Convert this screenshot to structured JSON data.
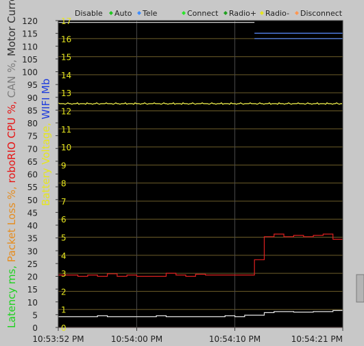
{
  "legend": [
    {
      "label": "Disable",
      "color": "#c8c8c8"
    },
    {
      "label": "Auto",
      "color": "#1ec81e"
    },
    {
      "label": "Tele",
      "color": "#3c8cff"
    },
    {
      "label": "Connect",
      "color": "#28e628"
    },
    {
      "label": "Radio+",
      "color": "#1ea01e"
    },
    {
      "label": "Radio-",
      "color": "#e6e61e"
    },
    {
      "label": "Disconnect",
      "color": "#ff9650"
    }
  ],
  "left_axis_title": [
    {
      "text": "Latency ms, ",
      "color": "#1ed21e"
    },
    {
      "text": "Packet Loss %, ",
      "color": "#e68c1e"
    },
    {
      "text": "roboRIO CPU %, ",
      "color": "#e61414"
    },
    {
      "text": "CAN %, ",
      "color": "#7d7d7d"
    },
    {
      "text": "Motor Currents",
      "color": "#323232"
    }
  ],
  "right_axis_title": [
    {
      "text": "Battery Voltage, ",
      "color": "#e6e61e"
    },
    {
      "text": "WIFI Mb",
      "color": "#1e3cdc"
    }
  ],
  "chart_data": {
    "type": "line",
    "left_axis": {
      "ylim": [
        0,
        120
      ],
      "ticks": [
        "0",
        "5",
        "10",
        "15",
        "20",
        "25",
        "30",
        "35",
        "40",
        "45",
        "50",
        "55",
        "60",
        "65",
        "70",
        "75",
        "80",
        "85",
        "90",
        "95",
        "100",
        "105",
        "110",
        "115",
        "120"
      ]
    },
    "right_axis": {
      "ylim": [
        0,
        17
      ],
      "ticks": [
        "0",
        "1",
        "2",
        "3",
        "4",
        "5",
        "6",
        "7",
        "8",
        "9",
        "10",
        "11",
        "12",
        "13",
        "14",
        "15",
        "16",
        "17"
      ]
    },
    "x_axis": {
      "range": [
        "10:53:52 PM",
        "10:54:21 PM"
      ],
      "ticks": [
        "10:53:52 PM",
        "10:54:00 PM",
        "10:54:10 PM",
        "10:54:21 PM"
      ]
    },
    "series": [
      {
        "axis": "left",
        "color": "#e02020",
        "points": [
          [
            "10:53:52 PM",
            20.5
          ],
          [
            "10:53:54 PM",
            20.5
          ],
          [
            "10:53:54 PM",
            20.0
          ],
          [
            "10:53:55 PM",
            20.0
          ],
          [
            "10:53:55 PM",
            20.5
          ],
          [
            "10:53:56 PM",
            20.5
          ],
          [
            "10:53:56 PM",
            20.0
          ],
          [
            "10:53:57 PM",
            20.0
          ],
          [
            "10:53:57 PM",
            21.0
          ],
          [
            "10:53:58 PM",
            21.0
          ],
          [
            "10:53:58 PM",
            20.0
          ],
          [
            "10:53:59 PM",
            20.0
          ],
          [
            "10:53:59 PM",
            20.5
          ],
          [
            "10:54:00 PM",
            20.5
          ],
          [
            "10:54:00 PM",
            20.0
          ],
          [
            "10:54:03 PM",
            20.0
          ],
          [
            "10:54:03 PM",
            21.2
          ],
          [
            "10:54:04 PM",
            21.2
          ],
          [
            "10:54:04 PM",
            20.5
          ],
          [
            "10:54:05 PM",
            20.5
          ],
          [
            "10:54:05 PM",
            20.0
          ],
          [
            "10:54:06 PM",
            20.0
          ],
          [
            "10:54:06 PM",
            20.8
          ],
          [
            "10:54:07 PM",
            20.8
          ],
          [
            "10:54:07 PM",
            20.5
          ],
          [
            "10:54:12 PM",
            20.5
          ],
          [
            "10:54:12 PM",
            26.5
          ],
          [
            "10:54:13 PM",
            26.5
          ],
          [
            "10:54:13 PM",
            35.5
          ],
          [
            "10:54:14 PM",
            35.5
          ],
          [
            "10:54:14 PM",
            36.5
          ],
          [
            "10:54:15 PM",
            36.5
          ],
          [
            "10:54:15 PM",
            35.5
          ],
          [
            "10:54:16 PM",
            35.5
          ],
          [
            "10:54:16 PM",
            36.0
          ],
          [
            "10:54:17 PM",
            36.0
          ],
          [
            "10:54:17 PM",
            35.5
          ],
          [
            "10:54:18 PM",
            35.5
          ],
          [
            "10:54:18 PM",
            36.0
          ],
          [
            "10:54:19 PM",
            36.0
          ],
          [
            "10:54:19 PM",
            36.5
          ],
          [
            "10:54:20 PM",
            36.5
          ],
          [
            "10:54:20 PM",
            34.5
          ],
          [
            "10:54:21 PM",
            34.5
          ]
        ]
      },
      {
        "axis": "left",
        "color": "#e6e6e6",
        "points": [
          [
            "10:53:52 PM",
            4.2
          ],
          [
            "10:53:56 PM",
            4.2
          ],
          [
            "10:53:56 PM",
            4.6
          ],
          [
            "10:53:57 PM",
            4.6
          ],
          [
            "10:53:57 PM",
            4.2
          ],
          [
            "10:54:02 PM",
            4.2
          ],
          [
            "10:54:02 PM",
            4.6
          ],
          [
            "10:54:03 PM",
            4.6
          ],
          [
            "10:54:03 PM",
            4.2
          ],
          [
            "10:54:09 PM",
            4.2
          ],
          [
            "10:54:09 PM",
            4.6
          ],
          [
            "10:54:10 PM",
            4.6
          ],
          [
            "10:54:10 PM",
            4.2
          ],
          [
            "10:54:11 PM",
            4.2
          ],
          [
            "10:54:11 PM",
            4.8
          ],
          [
            "10:54:13 PM",
            4.8
          ],
          [
            "10:54:13 PM",
            5.8
          ],
          [
            "10:54:14 PM",
            5.8
          ],
          [
            "10:54:14 PM",
            6.2
          ],
          [
            "10:54:16 PM",
            6.2
          ],
          [
            "10:54:16 PM",
            6.0
          ],
          [
            "10:54:18 PM",
            6.0
          ],
          [
            "10:54:18 PM",
            6.2
          ],
          [
            "10:54:20 PM",
            6.2
          ],
          [
            "10:54:20 PM",
            6.6
          ],
          [
            "10:54:21 PM",
            6.6
          ]
        ]
      },
      {
        "axis": "left",
        "color": "#ffaaaa",
        "points": [
          [
            "10:53:52 PM",
            0.0
          ],
          [
            "10:54:21 PM",
            0.0
          ]
        ]
      },
      {
        "axis": "right",
        "color": "#ffff50",
        "noisy": true,
        "points": [
          [
            "10:53:52 PM",
            12.4
          ],
          [
            "10:54:21 PM",
            12.4
          ]
        ]
      },
      {
        "axis": "right",
        "color": "#d2d2d2",
        "points": [
          [
            "10:53:52 PM",
            16.9
          ],
          [
            "10:54:12 PM",
            16.9
          ]
        ]
      },
      {
        "axis": "right",
        "color": "#5a8cff",
        "points": [
          [
            "10:54:12 PM",
            16.3
          ],
          [
            "10:54:21 PM",
            16.3
          ]
        ]
      },
      {
        "axis": "right",
        "color": "#5a8cff",
        "points": [
          [
            "10:54:12 PM",
            16.0
          ],
          [
            "10:54:21 PM",
            16.0
          ]
        ]
      }
    ]
  }
}
